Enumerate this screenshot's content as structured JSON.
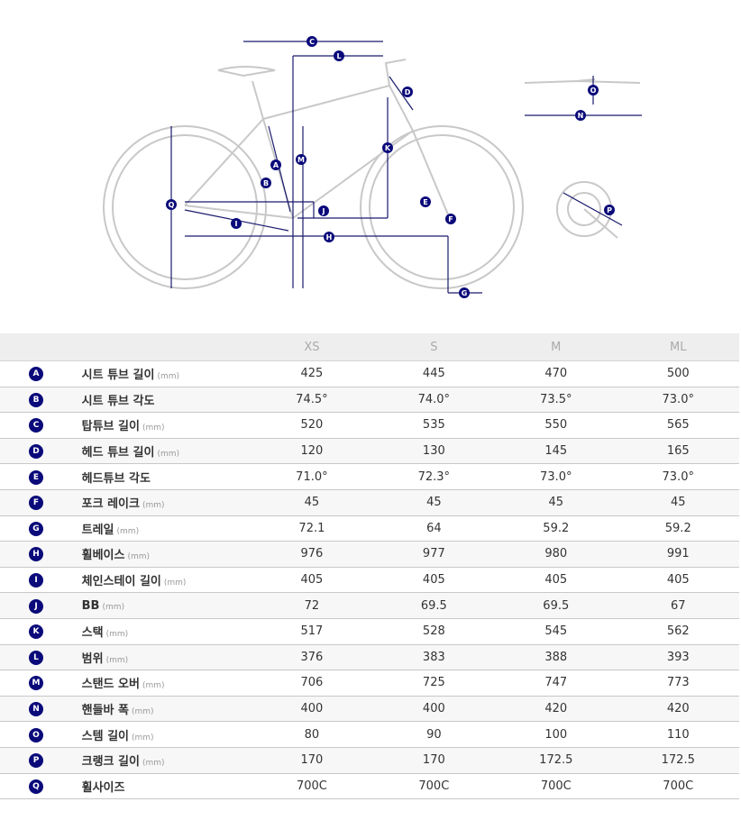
{
  "colors": {
    "accent": "#0a0a7a",
    "header_bg": "#eeeeee",
    "row_alt": "#f7f7f7"
  },
  "unit": "(mm)",
  "sizes": [
    "XS",
    "S",
    "M",
    "ML"
  ],
  "rows": [
    {
      "letter": "A",
      "label": "시트 튜브 길이",
      "unit": true,
      "values": [
        "425",
        "445",
        "470",
        "500"
      ]
    },
    {
      "letter": "B",
      "label": "시트 튜브 각도",
      "unit": false,
      "values": [
        "74.5°",
        "74.0°",
        "73.5°",
        "73.0°"
      ]
    },
    {
      "letter": "C",
      "label": "탑튜브 길이",
      "unit": true,
      "values": [
        "520",
        "535",
        "550",
        "565"
      ]
    },
    {
      "letter": "D",
      "label": "헤드 튜브 길이",
      "unit": true,
      "values": [
        "120",
        "130",
        "145",
        "165"
      ]
    },
    {
      "letter": "E",
      "label": "헤드튜브 각도",
      "unit": false,
      "values": [
        "71.0°",
        "72.3°",
        "73.0°",
        "73.0°"
      ]
    },
    {
      "letter": "F",
      "label": "포크 레이크",
      "unit": true,
      "values": [
        "45",
        "45",
        "45",
        "45"
      ]
    },
    {
      "letter": "G",
      "label": "트레일",
      "unit": true,
      "values": [
        "72.1",
        "64",
        "59.2",
        "59.2"
      ]
    },
    {
      "letter": "H",
      "label": "휠베이스",
      "unit": true,
      "values": [
        "976",
        "977",
        "980",
        "991"
      ]
    },
    {
      "letter": "I",
      "label": "체인스테이 길이",
      "unit": true,
      "values": [
        "405",
        "405",
        "405",
        "405"
      ]
    },
    {
      "letter": "J",
      "label": "BB",
      "unit": true,
      "values": [
        "72",
        "69.5",
        "69.5",
        "67"
      ]
    },
    {
      "letter": "K",
      "label": "스택",
      "unit": true,
      "values": [
        "517",
        "528",
        "545",
        "562"
      ]
    },
    {
      "letter": "L",
      "label": "범위",
      "unit": true,
      "values": [
        "376",
        "383",
        "388",
        "393"
      ]
    },
    {
      "letter": "M",
      "label": "스탠드 오버",
      "unit": true,
      "values": [
        "706",
        "725",
        "747",
        "773"
      ]
    },
    {
      "letter": "N",
      "label": "핸들바 폭",
      "unit": true,
      "values": [
        "400",
        "400",
        "420",
        "420"
      ]
    },
    {
      "letter": "O",
      "label": "스템 길이",
      "unit": true,
      "values": [
        "80",
        "90",
        "100",
        "110"
      ]
    },
    {
      "letter": "P",
      "label": "크랭크 길이",
      "unit": true,
      "values": [
        "170",
        "170",
        "172.5",
        "172.5"
      ]
    },
    {
      "letter": "Q",
      "label": "휠사이즈",
      "unit": false,
      "values": [
        "700C",
        "700C",
        "700C",
        "700C"
      ]
    }
  ]
}
